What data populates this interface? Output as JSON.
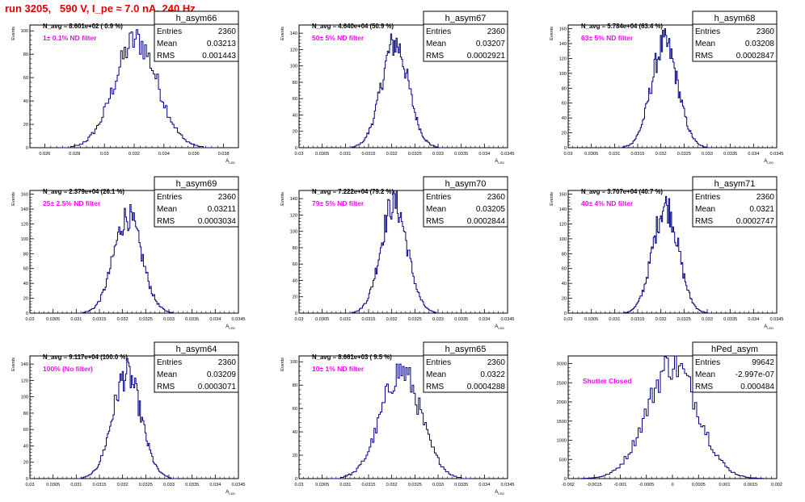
{
  "header": {
    "title": "run 3205,   590 V, I_pe ≈ 7.0 nA, 240 Hz"
  },
  "colors": {
    "title": "#e00000",
    "annotation": "#ff00ff",
    "histogram": "#000080",
    "frame": "#000000"
  },
  "stat_labels": {
    "entries": "Entries",
    "mean": "Mean",
    "rms": "RMS"
  },
  "chart_data": [
    {
      "type": "histogram",
      "name": "h_asym66",
      "stats": {
        "entries": "2360",
        "mean": "0.03213",
        "rms": "0.001443"
      },
      "navg": "N_avg = 8.601e+02 ( 0.9 %)",
      "annotation": "1± 0.1% ND filter",
      "xlabel": "A",
      "xlabel_sub": "LED",
      "ylabel": "Events",
      "xlim": [
        0.025,
        0.039
      ],
      "ylim": [
        0,
        105
      ],
      "xticks": [
        0.026,
        0.028,
        0.03,
        0.032,
        0.034,
        0.036,
        0.038
      ],
      "xticklabels": [
        "0.026",
        "0.028",
        "0.03",
        "0.032",
        "0.034",
        "0.036",
        "0.038"
      ],
      "yticks": [
        0,
        20,
        40,
        60,
        80,
        100
      ],
      "yticklabels": [
        "0",
        "20",
        "40",
        "60",
        "80",
        "100"
      ],
      "mean": 0.03213,
      "sigma": 0.001443,
      "peak": 92
    },
    {
      "type": "histogram",
      "name": "h_asym67",
      "stats": {
        "entries": "2360",
        "mean": "0.03207",
        "rms": "0.0002921"
      },
      "navg": "N_avg = 4.640e+04 (50.9 %)",
      "annotation": "50± 5% ND filter",
      "xlabel": "A",
      "xlabel_sub": "LED",
      "ylabel": "Events",
      "xlim": [
        0.03,
        0.0345
      ],
      "ylim": [
        0,
        150
      ],
      "xticks": [
        0.03,
        0.0305,
        0.031,
        0.0315,
        0.032,
        0.0325,
        0.033,
        0.0335,
        0.034,
        0.0345
      ],
      "xticklabels": [
        "0.03",
        "0.0305",
        "0.031",
        "0.0315",
        "0.032",
        "0.0325",
        "0.033",
        "0.0335",
        "0.034",
        "0.0345"
      ],
      "yticks": [
        0,
        20,
        40,
        60,
        80,
        100,
        120,
        140
      ],
      "yticklabels": [
        "0",
        "20",
        "40",
        "60",
        "80",
        "100",
        "120",
        "140"
      ],
      "mean": 0.03207,
      "sigma": 0.0002921,
      "peak": 128
    },
    {
      "type": "histogram",
      "name": "h_asym68",
      "stats": {
        "entries": "2360",
        "mean": "0.03208",
        "rms": "0.0002847"
      },
      "navg": "N_avg = 5.784e+04 (63.4 %)",
      "annotation": "63± 5% ND filter",
      "xlabel": "A",
      "xlabel_sub": "LED",
      "ylabel": "Events",
      "xlim": [
        0.03,
        0.0345
      ],
      "ylim": [
        0,
        165
      ],
      "xticks": [
        0.03,
        0.0305,
        0.031,
        0.0315,
        0.032,
        0.0325,
        0.033,
        0.0335,
        0.034,
        0.0345
      ],
      "xticklabels": [
        "0.03",
        "0.0305",
        "0.031",
        "0.0315",
        "0.032",
        "0.0325",
        "0.033",
        "0.0335",
        "0.034",
        "0.0345"
      ],
      "yticks": [
        0,
        20,
        40,
        60,
        80,
        100,
        120,
        140,
        160
      ],
      "yticklabels": [
        "0",
        "20",
        "40",
        "60",
        "80",
        "100",
        "120",
        "140",
        "160"
      ],
      "mean": 0.03208,
      "sigma": 0.0002847,
      "peak": 140
    },
    {
      "type": "histogram",
      "name": "h_asym69",
      "stats": {
        "entries": "2360",
        "mean": "0.03211",
        "rms": "0.0003034"
      },
      "navg": "N_avg = 2.379e+04 (26.1 %)",
      "annotation": "25± 2.5% ND filter",
      "xlabel": "A",
      "xlabel_sub": "LED",
      "ylabel": "Events",
      "xlim": [
        0.03,
        0.0345
      ],
      "ylim": [
        0,
        165
      ],
      "xticks": [
        0.03,
        0.0305,
        0.031,
        0.0315,
        0.032,
        0.0325,
        0.033,
        0.0335,
        0.034,
        0.0345
      ],
      "xticklabels": [
        "0.03",
        "0.0305",
        "0.031",
        "0.0315",
        "0.032",
        "0.0325",
        "0.033",
        "0.0335",
        "0.034",
        "0.0345"
      ],
      "yticks": [
        0,
        20,
        40,
        60,
        80,
        100,
        120,
        140,
        160
      ],
      "yticklabels": [
        "0",
        "20",
        "40",
        "60",
        "80",
        "100",
        "120",
        "140",
        "160"
      ],
      "mean": 0.03211,
      "sigma": 0.0003034,
      "peak": 130
    },
    {
      "type": "histogram",
      "name": "h_asym70",
      "stats": {
        "entries": "2360",
        "mean": "0.03205",
        "rms": "0.0002844"
      },
      "navg": "N_avg = 7.222e+04 (79.2 %)",
      "annotation": "79± 5% ND filter",
      "xlabel": "A",
      "xlabel_sub": "LED",
      "ylabel": "Events",
      "xlim": [
        0.03,
        0.0345
      ],
      "ylim": [
        0,
        150
      ],
      "xticks": [
        0.03,
        0.0305,
        0.031,
        0.0315,
        0.032,
        0.0325,
        0.033,
        0.0335,
        0.034,
        0.0345
      ],
      "xticklabels": [
        "0.03",
        "0.0305",
        "0.031",
        "0.0315",
        "0.032",
        "0.0325",
        "0.033",
        "0.0335",
        "0.034",
        "0.0345"
      ],
      "yticks": [
        0,
        20,
        40,
        60,
        80,
        100,
        120,
        140
      ],
      "yticklabels": [
        "0",
        "20",
        "40",
        "60",
        "80",
        "100",
        "120",
        "140"
      ],
      "mean": 0.03205,
      "sigma": 0.0002844,
      "peak": 135
    },
    {
      "type": "histogram",
      "name": "h_asym71",
      "stats": {
        "entries": "2360",
        "mean": "0.0321",
        "rms": "0.0002747"
      },
      "navg": "N_avg = 3.707e+04 (40.7 %)",
      "annotation": "40± 4% ND filter",
      "xlabel": "A",
      "xlabel_sub": "LED",
      "ylabel": "Events",
      "xlim": [
        0.03,
        0.0345
      ],
      "ylim": [
        0,
        165
      ],
      "xticks": [
        0.03,
        0.0305,
        0.031,
        0.0315,
        0.032,
        0.0325,
        0.033,
        0.0335,
        0.034,
        0.0345
      ],
      "xticklabels": [
        "0.03",
        "0.0305",
        "0.031",
        "0.0315",
        "0.032",
        "0.0325",
        "0.033",
        "0.0335",
        "0.034",
        "0.0345"
      ],
      "yticks": [
        0,
        20,
        40,
        60,
        80,
        100,
        120,
        140,
        160
      ],
      "yticklabels": [
        "0",
        "20",
        "40",
        "60",
        "80",
        "100",
        "120",
        "140",
        "160"
      ],
      "mean": 0.0321,
      "sigma": 0.0002747,
      "peak": 145
    },
    {
      "type": "histogram",
      "name": "h_asym64",
      "stats": {
        "entries": "2360",
        "mean": "0.03209",
        "rms": "0.0003071"
      },
      "navg": "N_avg = 9.117e+04 (100.0 %)",
      "annotation": "100% (No filter)",
      "xlabel": "A",
      "xlabel_sub": "LED",
      "ylabel": "Events",
      "xlim": [
        0.03,
        0.0345
      ],
      "ylim": [
        0,
        150
      ],
      "xticks": [
        0.03,
        0.0305,
        0.031,
        0.0315,
        0.032,
        0.0325,
        0.033,
        0.0335,
        0.034,
        0.0345
      ],
      "xticklabels": [
        "0.03",
        "0.0305",
        "0.031",
        "0.0315",
        "0.032",
        "0.0325",
        "0.033",
        "0.0335",
        "0.034",
        "0.0345"
      ],
      "yticks": [
        0,
        20,
        40,
        60,
        80,
        100,
        120,
        140
      ],
      "yticklabels": [
        "0",
        "20",
        "40",
        "60",
        "80",
        "100",
        "120",
        "140"
      ],
      "mean": 0.03209,
      "sigma": 0.0003071,
      "peak": 128
    },
    {
      "type": "histogram",
      "name": "h_asym65",
      "stats": {
        "entries": "2360",
        "mean": "0.0322",
        "rms": "0.0004288"
      },
      "navg": "N_avg = 8.661e+03 ( 9.5 %)",
      "annotation": "10± 1% ND filter",
      "xlabel": "A",
      "xlabel_sub": "LED",
      "ylabel": "Events",
      "xlim": [
        0.03,
        0.0345
      ],
      "ylim": [
        0,
        105
      ],
      "xticks": [
        0.03,
        0.0305,
        0.031,
        0.0315,
        0.032,
        0.0325,
        0.033,
        0.0335,
        0.034,
        0.0345
      ],
      "xticklabels": [
        "0.03",
        "0.0305",
        "0.031",
        "0.0315",
        "0.032",
        "0.0325",
        "0.033",
        "0.0335",
        "0.034",
        "0.0345"
      ],
      "yticks": [
        0,
        20,
        40,
        60,
        80,
        100
      ],
      "yticklabels": [
        "0",
        "20",
        "40",
        "60",
        "80",
        "100"
      ],
      "mean": 0.0322,
      "sigma": 0.0004288,
      "peak": 92
    },
    {
      "type": "histogram",
      "name": "hPed_asym",
      "stats": {
        "entries": "99642",
        "mean": "-2.997e-07",
        "rms": "0.000484"
      },
      "navg": "",
      "annotation": "Shutter Closed",
      "xlabel": "",
      "xlabel_sub": "",
      "ylabel": "",
      "xlim": [
        -0.002,
        0.002
      ],
      "ylim": [
        0,
        3200
      ],
      "xticks": [
        -0.002,
        -0.0015,
        -0.001,
        -0.0005,
        0,
        0.0005,
        0.001,
        0.0015,
        0.002
      ],
      "xticklabels": [
        "-0.002",
        "-0.0015",
        "-0.001",
        "-0.0005",
        "0",
        "0.0005",
        "0.001",
        "0.0015",
        "0.002"
      ],
      "yticks": [
        0,
        500,
        1000,
        1500,
        2000,
        2500,
        3000
      ],
      "yticklabels": [
        "0",
        "500",
        "1000",
        "1500",
        "2000",
        "2500",
        "3000"
      ],
      "mean": 0,
      "sigma": 0.000484,
      "peak": 3000
    }
  ]
}
